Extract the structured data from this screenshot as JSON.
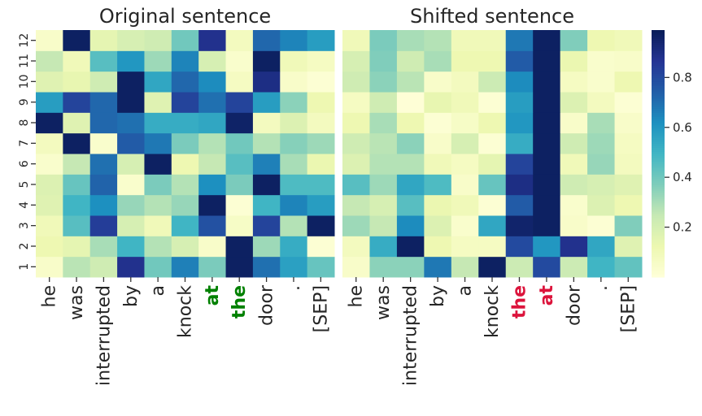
{
  "chart_data": [
    {
      "type": "heatmap",
      "title": "Original sentence",
      "x_tick_labels": [
        "he",
        "was",
        "interrupted",
        "by",
        "a",
        "knock",
        "at",
        "the",
        "door",
        ".",
        "[SEP]"
      ],
      "highlighted_x_labels": {
        "indices": [
          6,
          7
        ],
        "color": "#008000"
      },
      "y_tick_labels": [
        "1",
        "2",
        "3",
        "4",
        "5",
        "6",
        "7",
        "8",
        "9",
        "10",
        "11",
        "12"
      ],
      "rows_bottom_to_top": [
        [
          0.05,
          0.27,
          0.22,
          0.88,
          0.4,
          0.66,
          0.38,
          0.97,
          0.7,
          0.57,
          0.42
        ],
        [
          0.12,
          0.15,
          0.3,
          0.5,
          0.28,
          0.2,
          0.05,
          0.97,
          0.32,
          0.53,
          0.02
        ],
        [
          0.1,
          0.45,
          0.84,
          0.2,
          0.1,
          0.5,
          0.78,
          0.06,
          0.82,
          0.28,
          0.97
        ],
        [
          0.17,
          0.5,
          0.62,
          0.33,
          0.28,
          0.33,
          0.97,
          0.02,
          0.5,
          0.65,
          0.58
        ],
        [
          0.18,
          0.42,
          0.73,
          0.04,
          0.38,
          0.28,
          0.62,
          0.38,
          0.97,
          0.47,
          0.47
        ],
        [
          0.04,
          0.25,
          0.7,
          0.2,
          0.97,
          0.12,
          0.25,
          0.45,
          0.66,
          0.3,
          0.13
        ],
        [
          0.08,
          0.97,
          0.04,
          0.75,
          0.68,
          0.38,
          0.28,
          0.4,
          0.28,
          0.36,
          0.32
        ],
        [
          0.97,
          0.17,
          0.72,
          0.7,
          0.53,
          0.53,
          0.55,
          0.96,
          0.08,
          0.18,
          0.08
        ],
        [
          0.58,
          0.82,
          0.72,
          0.97,
          0.17,
          0.82,
          0.7,
          0.82,
          0.58,
          0.35,
          0.12
        ],
        [
          0.17,
          0.14,
          0.22,
          0.97,
          0.55,
          0.72,
          0.63,
          0.07,
          0.9,
          0.05,
          0.02
        ],
        [
          0.25,
          0.1,
          0.45,
          0.6,
          0.32,
          0.65,
          0.2,
          0.04,
          0.97,
          0.1,
          0.07
        ],
        [
          0.05,
          0.97,
          0.15,
          0.2,
          0.22,
          0.4,
          0.88,
          0.08,
          0.72,
          0.65,
          0.58
        ]
      ]
    },
    {
      "type": "heatmap",
      "title": "Shifted sentence",
      "x_tick_labels": [
        "he",
        "was",
        "interrupted",
        "by",
        "a",
        "knock",
        "the",
        "at",
        "door",
        ".",
        "[SEP]"
      ],
      "highlighted_x_labels": {
        "indices": [
          6,
          7
        ],
        "color": "#dc143c"
      },
      "rows_bottom_to_top": [
        [
          0.05,
          0.35,
          0.35,
          0.68,
          0.25,
          0.97,
          0.23,
          0.8,
          0.23,
          0.5,
          0.43
        ],
        [
          0.08,
          0.53,
          0.97,
          0.12,
          0.07,
          0.07,
          0.8,
          0.6,
          0.88,
          0.55,
          0.17
        ],
        [
          0.32,
          0.25,
          0.63,
          0.18,
          0.04,
          0.55,
          0.95,
          0.97,
          0.05,
          0.02,
          0.37
        ],
        [
          0.25,
          0.2,
          0.45,
          0.13,
          0.1,
          0.02,
          0.75,
          0.97,
          0.04,
          0.18,
          0.12
        ],
        [
          0.45,
          0.32,
          0.55,
          0.47,
          0.05,
          0.42,
          0.9,
          0.97,
          0.22,
          0.2,
          0.17
        ],
        [
          0.18,
          0.28,
          0.28,
          0.1,
          0.07,
          0.15,
          0.82,
          0.97,
          0.1,
          0.33,
          0.08
        ],
        [
          0.22,
          0.27,
          0.35,
          0.05,
          0.2,
          0.02,
          0.53,
          0.97,
          0.22,
          0.32,
          0.07
        ],
        [
          0.12,
          0.3,
          0.12,
          0.02,
          0.06,
          0.12,
          0.6,
          0.97,
          0.05,
          0.3,
          0.05
        ],
        [
          0.07,
          0.22,
          0.01,
          0.14,
          0.1,
          0.02,
          0.58,
          0.97,
          0.18,
          0.08,
          0.02
        ],
        [
          0.22,
          0.35,
          0.27,
          0.05,
          0.08,
          0.23,
          0.63,
          0.97,
          0.07,
          0.04,
          0.12
        ],
        [
          0.2,
          0.37,
          0.22,
          0.3,
          0.12,
          0.12,
          0.75,
          0.97,
          0.13,
          0.04,
          0.05
        ],
        [
          0.1,
          0.38,
          0.3,
          0.28,
          0.1,
          0.1,
          0.68,
          0.97,
          0.37,
          0.12,
          0.1
        ]
      ]
    }
  ],
  "colorbar": {
    "colormap": "YlGnBu",
    "range": [
      0.0,
      0.99
    ],
    "ticks": [
      "0.2",
      "0.4",
      "0.6",
      "0.8"
    ],
    "tick_values": [
      0.2,
      0.4,
      0.6,
      0.8
    ]
  }
}
